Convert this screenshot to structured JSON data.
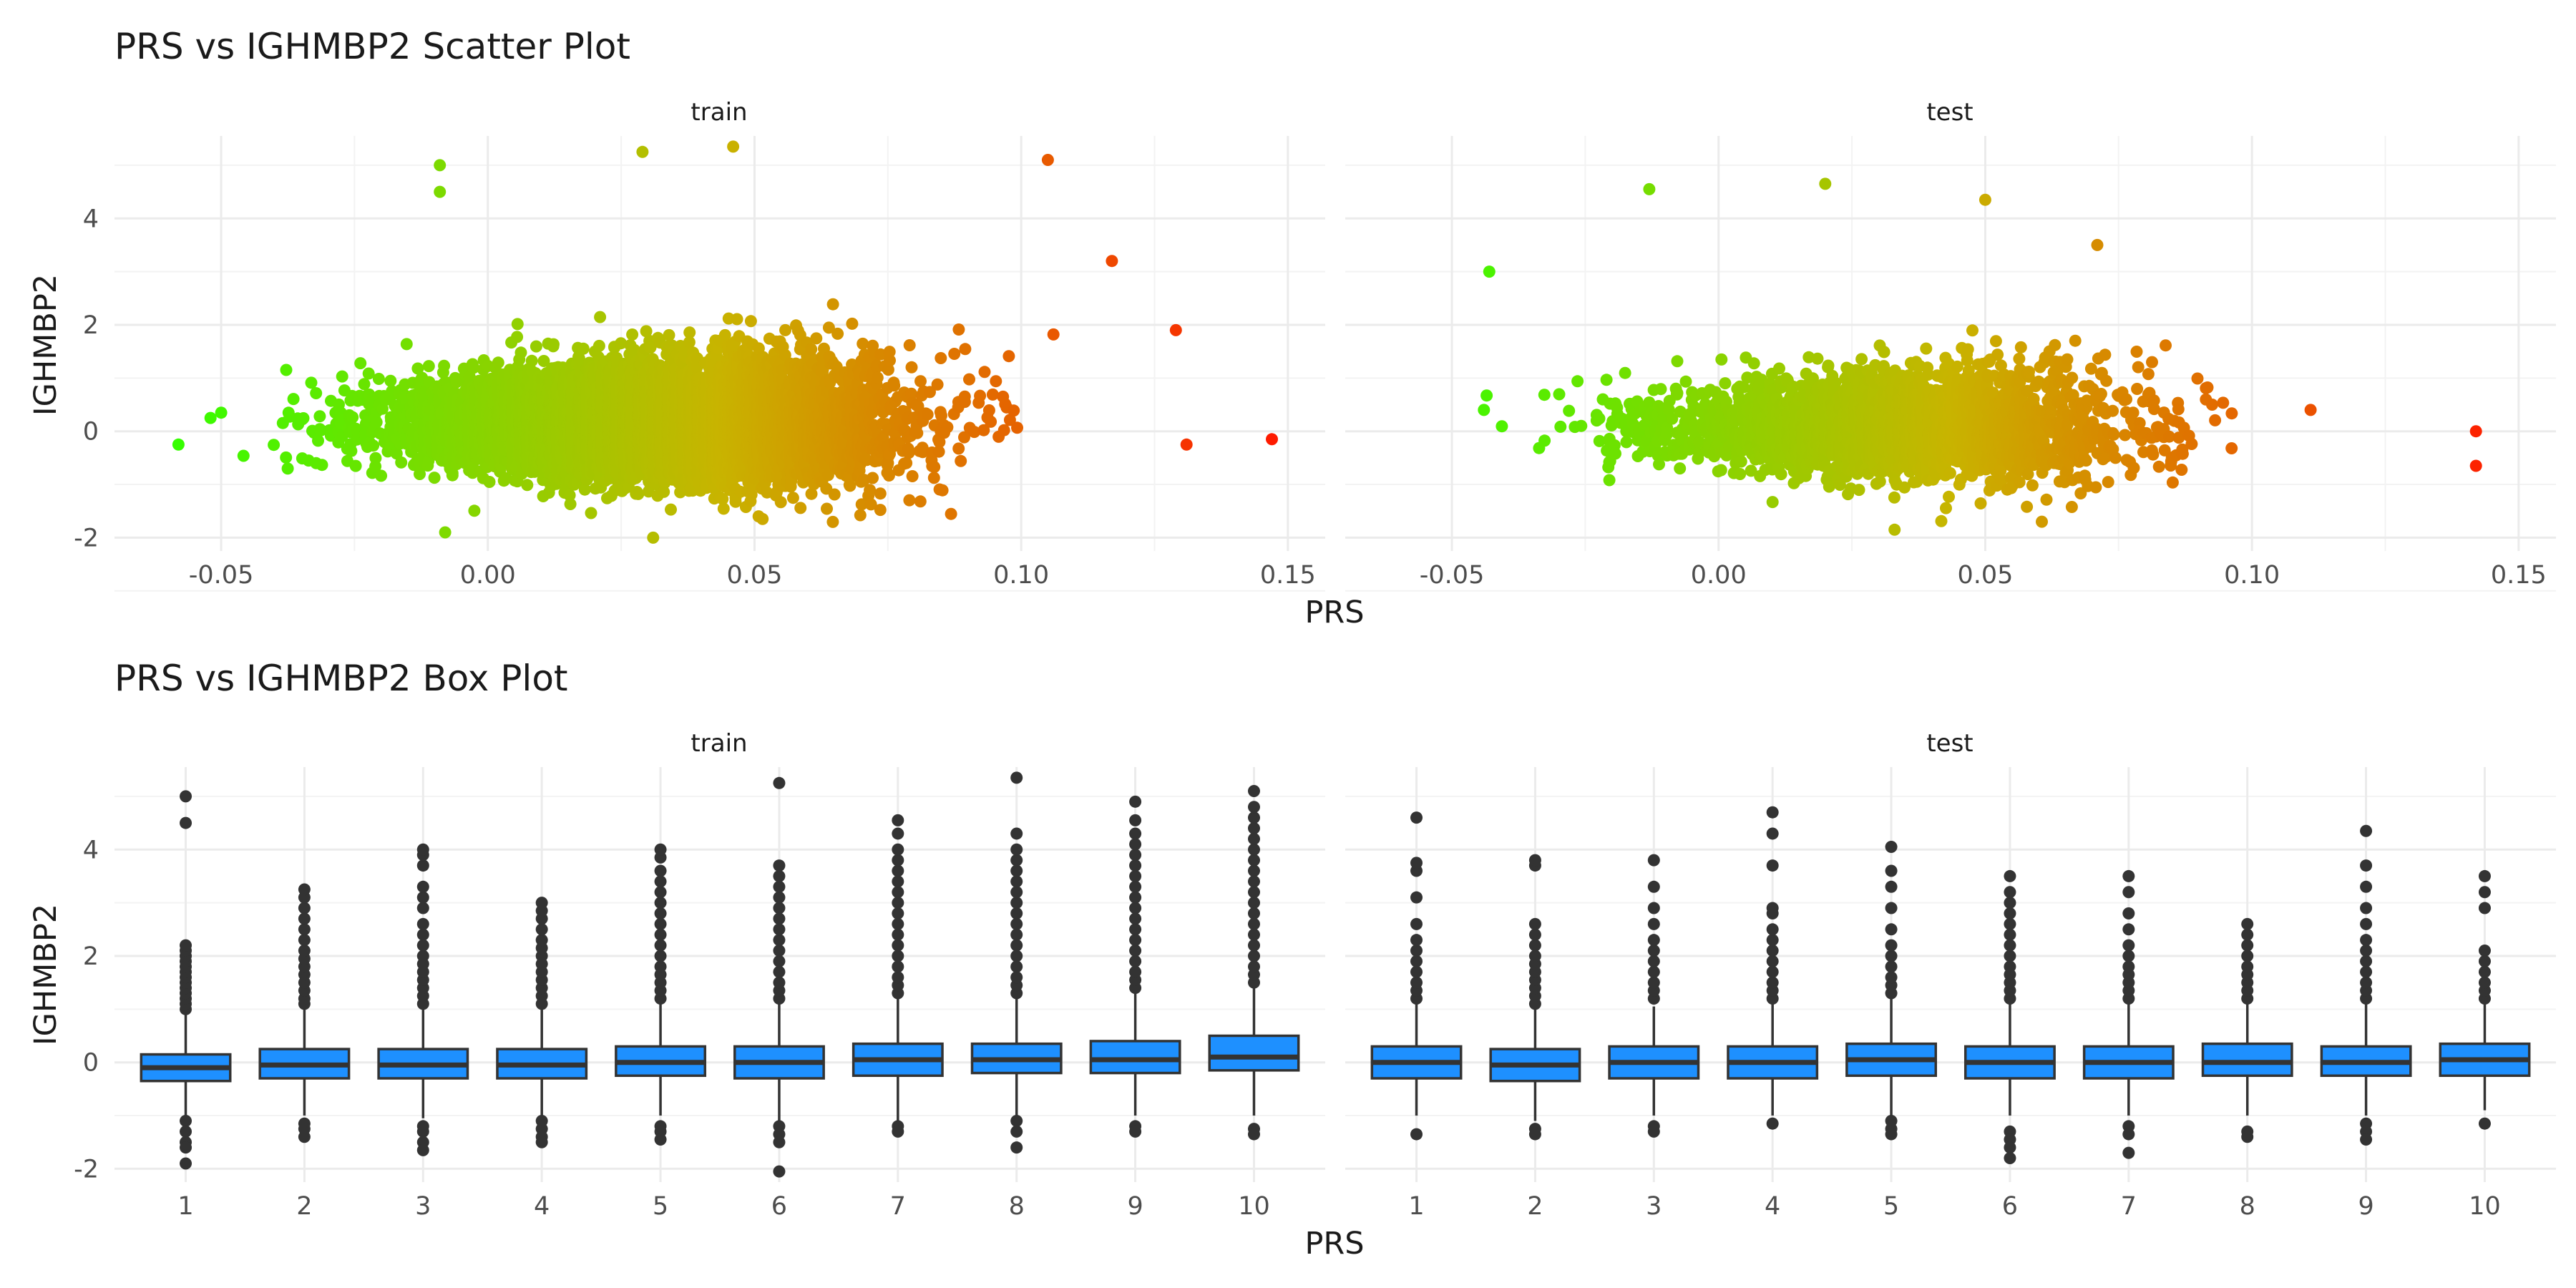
{
  "chart_data": [
    {
      "type": "scatter",
      "title": "PRS vs IGHMBP2 Scatter Plot",
      "xlabel": "PRS",
      "ylabel": "IGHMBP2",
      "xlim": [
        -0.07,
        0.157
      ],
      "ylim": [
        -2.25,
        5.55
      ],
      "x_ticks": [
        "-0.05",
        "0.00",
        "0.05",
        "0.10",
        "0.15"
      ],
      "x_tick_values": [
        -0.05,
        0.0,
        0.05,
        0.1,
        0.15
      ],
      "y_ticks": [
        "-2",
        "0",
        "2",
        "4"
      ],
      "y_tick_values": [
        -2,
        0,
        2,
        4
      ],
      "color_scale": {
        "low": "#33ff00",
        "mid": "#c8b400",
        "high": "#ff1a00",
        "domain": [
          -0.06,
          0.148
        ]
      },
      "grid": true,
      "legend": "none",
      "facets": [
        {
          "label": "train",
          "dense_cloud": {
            "n": 9000,
            "x_mean": 0.03,
            "x_sd": 0.021,
            "y_mean": 0.1,
            "y_sd": 0.38
          },
          "notable_points": [
            {
              "x": -0.058,
              "y": -0.25
            },
            {
              "x": -0.052,
              "y": 0.25
            },
            {
              "x": -0.009,
              "y": 5.0
            },
            {
              "x": -0.009,
              "y": 4.5
            },
            {
              "x": 0.029,
              "y": 5.25
            },
            {
              "x": 0.046,
              "y": 5.35
            },
            {
              "x": 0.105,
              "y": 5.1
            },
            {
              "x": 0.117,
              "y": 3.2
            },
            {
              "x": 0.129,
              "y": 1.9
            },
            {
              "x": 0.131,
              "y": -0.25
            },
            {
              "x": 0.147,
              "y": -0.15
            },
            {
              "x": 0.031,
              "y": -2.0
            },
            {
              "x": -0.008,
              "y": -1.9
            }
          ]
        },
        {
          "label": "test",
          "dense_cloud": {
            "n": 3000,
            "x_mean": 0.033,
            "x_sd": 0.021,
            "y_mean": 0.05,
            "y_sd": 0.35
          },
          "notable_points": [
            {
              "x": -0.043,
              "y": 3.0
            },
            {
              "x": -0.013,
              "y": 4.55
            },
            {
              "x": 0.02,
              "y": 4.65
            },
            {
              "x": 0.05,
              "y": 4.35
            },
            {
              "x": 0.071,
              "y": 3.5
            },
            {
              "x": 0.111,
              "y": 0.4
            },
            {
              "x": 0.142,
              "y": 0.0
            },
            {
              "x": 0.142,
              "y": -0.65
            },
            {
              "x": 0.033,
              "y": -1.85
            },
            {
              "x": -0.044,
              "y": 0.4
            }
          ]
        }
      ]
    },
    {
      "type": "box",
      "title": "PRS vs IGHMBP2 Box Plot",
      "xlabel": "PRS",
      "ylabel": "IGHMBP2",
      "categories": [
        "1",
        "2",
        "3",
        "4",
        "5",
        "6",
        "7",
        "8",
        "9",
        "10"
      ],
      "ylim": [
        -2.25,
        5.55
      ],
      "y_ticks": [
        "-2",
        "0",
        "2",
        "4"
      ],
      "y_tick_values": [
        -2,
        0,
        2,
        4
      ],
      "box_fill": "#1e90ff",
      "box_stroke": "#333333",
      "outlier_color": "#333333",
      "grid": true,
      "facets": [
        {
          "label": "train",
          "boxes": [
            {
              "q1": -0.35,
              "median": -0.1,
              "q3": 0.15,
              "whisker_low": -1.0,
              "whisker_high": 0.9,
              "outliers_high": [
                1.0,
                1.1,
                1.2,
                1.3,
                1.4,
                1.5,
                1.6,
                1.7,
                1.8,
                1.9,
                2.0,
                2.1,
                2.2,
                4.5,
                5.0
              ],
              "outliers_low": [
                -1.1,
                -1.3,
                -1.5,
                -1.6,
                -1.9
              ]
            },
            {
              "q1": -0.3,
              "median": -0.05,
              "q3": 0.25,
              "whisker_low": -1.0,
              "whisker_high": 1.0,
              "outliers_high": [
                1.1,
                1.2,
                1.35,
                1.5,
                1.65,
                1.8,
                1.95,
                2.1,
                2.3,
                2.5,
                2.7,
                2.9,
                3.1,
                3.25
              ],
              "outliers_low": [
                -1.15,
                -1.25,
                -1.4
              ]
            },
            {
              "q1": -0.3,
              "median": -0.05,
              "q3": 0.25,
              "whisker_low": -1.05,
              "whisker_high": 1.0,
              "outliers_high": [
                1.1,
                1.25,
                1.4,
                1.55,
                1.7,
                1.85,
                2.0,
                2.2,
                2.4,
                2.6,
                2.9,
                3.1,
                3.3,
                3.7,
                3.9,
                4.0
              ],
              "outliers_low": [
                -1.2,
                -1.3,
                -1.5,
                -1.65
              ]
            },
            {
              "q1": -0.3,
              "median": -0.05,
              "q3": 0.25,
              "whisker_low": -1.0,
              "whisker_high": 1.0,
              "outliers_high": [
                1.1,
                1.25,
                1.4,
                1.55,
                1.7,
                1.85,
                2.0,
                2.15,
                2.3,
                2.5,
                2.7,
                2.85,
                3.0
              ],
              "outliers_low": [
                -1.1,
                -1.25,
                -1.4,
                -1.5
              ]
            },
            {
              "q1": -0.25,
              "median": 0.0,
              "q3": 0.3,
              "whisker_low": -1.0,
              "whisker_high": 1.1,
              "outliers_high": [
                1.2,
                1.35,
                1.5,
                1.65,
                1.8,
                2.0,
                2.2,
                2.4,
                2.6,
                2.8,
                3.0,
                3.2,
                3.4,
                3.6,
                3.85,
                4.0
              ],
              "outliers_low": [
                -1.2,
                -1.3,
                -1.45
              ]
            },
            {
              "q1": -0.3,
              "median": 0.0,
              "q3": 0.3,
              "whisker_low": -1.1,
              "whisker_high": 1.1,
              "outliers_high": [
                1.2,
                1.35,
                1.5,
                1.7,
                1.9,
                2.1,
                2.3,
                2.5,
                2.7,
                2.9,
                3.1,
                3.3,
                3.5,
                3.7,
                5.25
              ],
              "outliers_low": [
                -1.2,
                -1.35,
                -1.5,
                -2.05
              ]
            },
            {
              "q1": -0.25,
              "median": 0.05,
              "q3": 0.35,
              "whisker_low": -1.1,
              "whisker_high": 1.2,
              "outliers_high": [
                1.3,
                1.45,
                1.6,
                1.8,
                2.0,
                2.2,
                2.4,
                2.6,
                2.8,
                3.0,
                3.2,
                3.4,
                3.6,
                3.8,
                4.0,
                4.3,
                4.55
              ],
              "outliers_low": [
                -1.2,
                -1.3
              ]
            },
            {
              "q1": -0.2,
              "median": 0.05,
              "q3": 0.35,
              "whisker_low": -1.0,
              "whisker_high": 1.2,
              "outliers_high": [
                1.3,
                1.45,
                1.6,
                1.8,
                2.0,
                2.2,
                2.4,
                2.6,
                2.8,
                3.0,
                3.2,
                3.4,
                3.6,
                3.8,
                4.0,
                4.3,
                5.35
              ],
              "outliers_low": [
                -1.1,
                -1.3,
                -1.6
              ]
            },
            {
              "q1": -0.2,
              "median": 0.05,
              "q3": 0.4,
              "whisker_low": -1.0,
              "whisker_high": 1.3,
              "outliers_high": [
                1.4,
                1.55,
                1.7,
                1.9,
                2.1,
                2.3,
                2.5,
                2.7,
                2.9,
                3.1,
                3.3,
                3.5,
                3.7,
                3.9,
                4.1,
                4.3,
                4.55,
                4.9
              ],
              "outliers_low": [
                -1.2,
                -1.3
              ]
            },
            {
              "q1": -0.15,
              "median": 0.1,
              "q3": 0.5,
              "whisker_low": -1.0,
              "whisker_high": 1.4,
              "outliers_high": [
                1.5,
                1.65,
                1.8,
                2.0,
                2.2,
                2.4,
                2.6,
                2.8,
                3.0,
                3.2,
                3.4,
                3.6,
                3.8,
                4.0,
                4.2,
                4.4,
                4.6,
                4.8,
                5.1
              ],
              "outliers_low": [
                -1.25,
                -1.35
              ]
            }
          ]
        },
        {
          "label": "test",
          "boxes": [
            {
              "q1": -0.3,
              "median": 0.0,
              "q3": 0.3,
              "whisker_low": -1.0,
              "whisker_high": 1.1,
              "outliers_high": [
                1.2,
                1.35,
                1.5,
                1.7,
                1.9,
                2.1,
                2.3,
                2.6,
                3.1,
                3.6,
                3.75,
                4.6
              ],
              "outliers_low": [
                -1.35
              ]
            },
            {
              "q1": -0.35,
              "median": -0.05,
              "q3": 0.25,
              "whisker_low": -1.1,
              "whisker_high": 1.0,
              "outliers_high": [
                1.1,
                1.25,
                1.4,
                1.55,
                1.7,
                1.85,
                2.0,
                2.2,
                2.4,
                2.6,
                3.7,
                3.8
              ],
              "outliers_low": [
                -1.25,
                -1.35
              ]
            },
            {
              "q1": -0.3,
              "median": 0.0,
              "q3": 0.3,
              "whisker_low": -1.0,
              "whisker_high": 1.05,
              "outliers_high": [
                1.2,
                1.35,
                1.5,
                1.7,
                1.9,
                2.1,
                2.3,
                2.6,
                2.9,
                3.3,
                3.8
              ],
              "outliers_low": [
                -1.2,
                -1.3
              ]
            },
            {
              "q1": -0.3,
              "median": 0.0,
              "q3": 0.3,
              "whisker_low": -1.0,
              "whisker_high": 1.1,
              "outliers_high": [
                1.2,
                1.35,
                1.5,
                1.7,
                1.9,
                2.1,
                2.3,
                2.5,
                2.8,
                2.9,
                3.7,
                4.3,
                4.7
              ],
              "outliers_low": [
                -1.15
              ]
            },
            {
              "q1": -0.25,
              "median": 0.05,
              "q3": 0.35,
              "whisker_low": -1.0,
              "whisker_high": 1.2,
              "outliers_high": [
                1.3,
                1.45,
                1.6,
                1.8,
                2.0,
                2.2,
                2.5,
                2.9,
                3.3,
                3.6,
                4.05
              ],
              "outliers_low": [
                -1.1,
                -1.25,
                -1.35
              ]
            },
            {
              "q1": -0.3,
              "median": 0.0,
              "q3": 0.3,
              "whisker_low": -1.0,
              "whisker_high": 1.1,
              "outliers_high": [
                1.2,
                1.35,
                1.5,
                1.65,
                1.8,
                2.0,
                2.2,
                2.4,
                2.6,
                2.8,
                3.0,
                3.2,
                3.5
              ],
              "outliers_low": [
                -1.3,
                -1.45,
                -1.6,
                -1.8
              ]
            },
            {
              "q1": -0.3,
              "median": 0.0,
              "q3": 0.3,
              "whisker_low": -1.0,
              "whisker_high": 1.1,
              "outliers_high": [
                1.2,
                1.35,
                1.5,
                1.65,
                1.8,
                2.0,
                2.2,
                2.5,
                2.8,
                3.2,
                3.5
              ],
              "outliers_low": [
                -1.2,
                -1.35,
                -1.7
              ]
            },
            {
              "q1": -0.25,
              "median": 0.0,
              "q3": 0.35,
              "whisker_low": -1.0,
              "whisker_high": 1.1,
              "outliers_high": [
                1.2,
                1.35,
                1.5,
                1.65,
                1.8,
                2.0,
                2.2,
                2.4,
                2.6
              ],
              "outliers_low": [
                -1.3,
                -1.4
              ]
            },
            {
              "q1": -0.25,
              "median": 0.0,
              "q3": 0.3,
              "whisker_low": -1.0,
              "whisker_high": 1.1,
              "outliers_high": [
                1.2,
                1.35,
                1.5,
                1.7,
                1.9,
                2.1,
                2.3,
                2.6,
                2.9,
                3.3,
                3.7,
                4.35
              ],
              "outliers_low": [
                -1.15,
                -1.3,
                -1.45
              ]
            },
            {
              "q1": -0.25,
              "median": 0.05,
              "q3": 0.35,
              "whisker_low": -0.9,
              "whisker_high": 1.1,
              "outliers_high": [
                1.2,
                1.35,
                1.5,
                1.7,
                1.9,
                2.1,
                2.9,
                3.2,
                3.5
              ],
              "outliers_low": [
                -1.15
              ]
            }
          ]
        }
      ]
    }
  ]
}
